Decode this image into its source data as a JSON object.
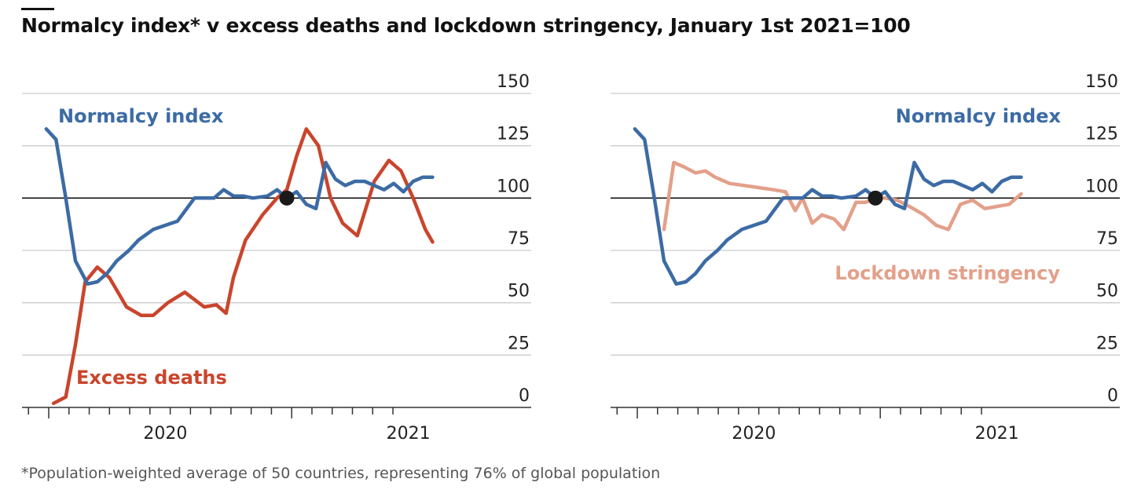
{
  "title": "Normalcy index* v excess deaths and lockdown stringency, January 1st 2021=100",
  "footnote": "*Population-weighted average of 50 countries, representing 76% of global population",
  "colors": {
    "normalcy": "#3C6BA5",
    "excess_deaths": "#C9452C",
    "lockdown": "#E3A08A",
    "gridline": "#cccccc",
    "baseline": "#111111",
    "marker": "#1a1a1a"
  },
  "chart_data": [
    {
      "type": "line",
      "ylim": [
        0,
        150
      ],
      "yticks": [
        "0",
        "25",
        "50",
        "75",
        "100",
        "125",
        "150"
      ],
      "xticks": [
        "2020",
        "2021"
      ],
      "reference_line": 100,
      "marker": {
        "x": 2021.0,
        "y": 100
      },
      "series": [
        {
          "name": "Normalcy index",
          "key": "normalcy",
          "x": [
            2020.01,
            2020.05,
            2020.09,
            2020.13,
            2020.18,
            2020.22,
            2020.26,
            2020.3,
            2020.35,
            2020.39,
            2020.45,
            2020.5,
            2020.55,
            2020.62,
            2020.66,
            2020.7,
            2020.74,
            2020.78,
            2020.82,
            2020.86,
            2020.92,
            2020.96,
            2021.0,
            2021.04,
            2021.08,
            2021.12,
            2021.16,
            2021.2,
            2021.24,
            2021.28,
            2021.32,
            2021.36,
            2021.4,
            2021.44,
            2021.48,
            2021.52,
            2021.56,
            2021.6
          ],
          "y": [
            133,
            128,
            100,
            70,
            59,
            60,
            64,
            70,
            75,
            80,
            85,
            87,
            89,
            100,
            100,
            100,
            104,
            101,
            101,
            100,
            101,
            104,
            100,
            103,
            97,
            95,
            117,
            109,
            106,
            108,
            108,
            106,
            104,
            107,
            103,
            108,
            110,
            110
          ]
        },
        {
          "name": "Excess deaths",
          "key": "excess_deaths",
          "x": [
            2020.04,
            2020.09,
            2020.13,
            2020.17,
            2020.22,
            2020.27,
            2020.34,
            2020.4,
            2020.45,
            2020.51,
            2020.58,
            2020.66,
            2020.71,
            2020.75,
            2020.78,
            2020.83,
            2020.9,
            2020.96,
            2021.0,
            2021.04,
            2021.08,
            2021.13,
            2021.18,
            2021.23,
            2021.29,
            2021.36,
            2021.42,
            2021.47,
            2021.52,
            2021.57,
            2021.6
          ],
          "y": [
            2,
            5,
            30,
            60,
            67,
            62,
            48,
            44,
            44,
            50,
            55,
            48,
            49,
            45,
            62,
            80,
            92,
            100,
            104,
            120,
            133,
            125,
            100,
            88,
            82,
            108,
            118,
            113,
            100,
            85,
            79
          ]
        }
      ]
    },
    {
      "type": "line",
      "ylim": [
        0,
        150
      ],
      "yticks": [
        "0",
        "25",
        "50",
        "75",
        "100",
        "125",
        "150"
      ],
      "xticks": [
        "2020",
        "2021"
      ],
      "reference_line": 100,
      "marker": {
        "x": 2021.0,
        "y": 100
      },
      "series": [
        {
          "name": "Normalcy index",
          "key": "normalcy",
          "x": [
            2020.01,
            2020.05,
            2020.09,
            2020.13,
            2020.18,
            2020.22,
            2020.26,
            2020.3,
            2020.35,
            2020.39,
            2020.45,
            2020.5,
            2020.55,
            2020.62,
            2020.66,
            2020.7,
            2020.74,
            2020.78,
            2020.82,
            2020.86,
            2020.92,
            2020.96,
            2021.0,
            2021.04,
            2021.08,
            2021.12,
            2021.16,
            2021.2,
            2021.24,
            2021.28,
            2021.32,
            2021.36,
            2021.4,
            2021.44,
            2021.48,
            2021.52,
            2021.56,
            2021.6
          ],
          "y": [
            133,
            128,
            100,
            70,
            59,
            60,
            64,
            70,
            75,
            80,
            85,
            87,
            89,
            100,
            100,
            100,
            104,
            101,
            101,
            100,
            101,
            104,
            100,
            103,
            97,
            95,
            117,
            109,
            106,
            108,
            108,
            106,
            104,
            107,
            103,
            108,
            110,
            110
          ]
        },
        {
          "name": "Lockdown stringency",
          "key": "lockdown",
          "x": [
            2020.13,
            2020.17,
            2020.21,
            2020.26,
            2020.3,
            2020.34,
            2020.4,
            2020.46,
            2020.52,
            2020.58,
            2020.63,
            2020.67,
            2020.7,
            2020.74,
            2020.78,
            2020.83,
            2020.87,
            2020.92,
            2020.96,
            2021.0,
            2021.04,
            2021.09,
            2021.14,
            2021.2,
            2021.25,
            2021.3,
            2021.35,
            2021.4,
            2021.45,
            2021.5,
            2021.55,
            2021.6
          ],
          "y": [
            85,
            117,
            115,
            112,
            113,
            110,
            107,
            106,
            105,
            104,
            103,
            94,
            100,
            88,
            92,
            90,
            85,
            98,
            98,
            100,
            100,
            99,
            96,
            92,
            87,
            85,
            97,
            99,
            95,
            96,
            97,
            102
          ]
        }
      ]
    }
  ],
  "labels": {
    "left_normalcy": "Normalcy index",
    "left_excess": "Excess deaths",
    "right_normalcy": "Normalcy index",
    "right_lockdown": "Lockdown stringency"
  }
}
